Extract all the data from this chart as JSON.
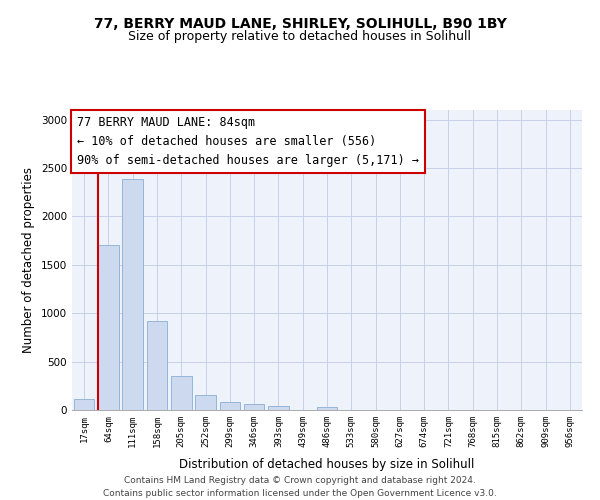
{
  "title1": "77, BERRY MAUD LANE, SHIRLEY, SOLIHULL, B90 1BY",
  "title2": "Size of property relative to detached houses in Solihull",
  "xlabel": "Distribution of detached houses by size in Solihull",
  "ylabel": "Number of detached properties",
  "bar_color": "#ccd9ee",
  "bar_edge_color": "#8aafd4",
  "categories": [
    "17sqm",
    "64sqm",
    "111sqm",
    "158sqm",
    "205sqm",
    "252sqm",
    "299sqm",
    "346sqm",
    "393sqm",
    "439sqm",
    "486sqm",
    "533sqm",
    "580sqm",
    "627sqm",
    "674sqm",
    "721sqm",
    "768sqm",
    "815sqm",
    "862sqm",
    "909sqm",
    "956sqm"
  ],
  "values": [
    115,
    1700,
    2390,
    920,
    350,
    155,
    80,
    60,
    45,
    0,
    35,
    0,
    0,
    0,
    0,
    0,
    0,
    0,
    0,
    0,
    0
  ],
  "vline_color": "#cc0000",
  "vline_position": 0.575,
  "annotation_text_line1": "77 BERRY MAUD LANE: 84sqm",
  "annotation_text_line2": "← 10% of detached houses are smaller (556)",
  "annotation_text_line3": "90% of semi-detached houses are larger (5,171) →",
  "box_edge_color": "#cc0000",
  "ylim": [
    0,
    3100
  ],
  "yticks": [
    0,
    500,
    1000,
    1500,
    2000,
    2500,
    3000
  ],
  "footnote": "Contains HM Land Registry data © Crown copyright and database right 2024.\nContains public sector information licensed under the Open Government Licence v3.0.",
  "title1_fontsize": 10,
  "title2_fontsize": 9,
  "xlabel_fontsize": 8.5,
  "ylabel_fontsize": 8.5,
  "annotation_fontsize": 8.5,
  "footnote_fontsize": 6.5,
  "grid_color": "#c8d0e8",
  "bg_color": "#eef2fa"
}
